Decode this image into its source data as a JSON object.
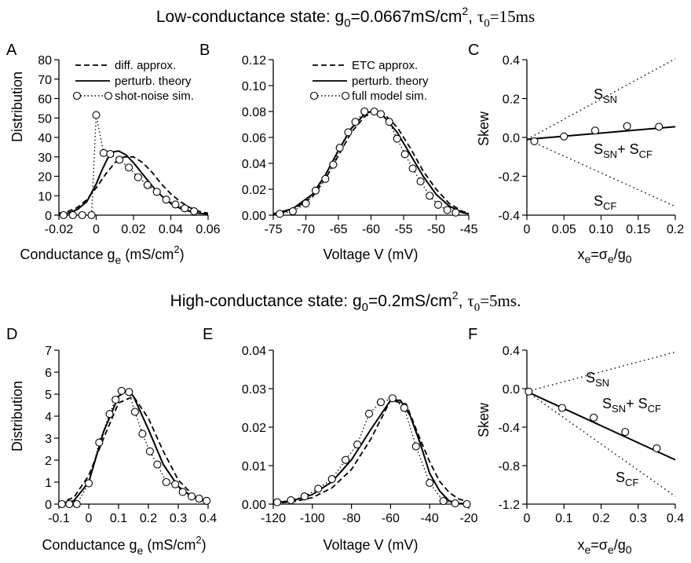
{
  "titles": {
    "low": {
      "prefix": "Low-conductance state: g",
      "sub0": "0",
      "mid": "=0.0667mS/cm",
      "sup": "2",
      "sep": ", ",
      "tau": "τ",
      "tausub": "0",
      "tail": "=15ms"
    },
    "high": {
      "prefix": "High-conductance state: g",
      "sub0": "0",
      "mid": "=0.2mS/cm",
      "sup": "2",
      "sep": ", ",
      "tau": "τ",
      "tausub": "0",
      "tail": "=5ms."
    }
  },
  "legends": {
    "left": [
      "diff. approx.",
      "perturb. theory",
      "shot-noise sim."
    ],
    "mid": [
      "ETC approx.",
      "perturb. theory",
      "full model sim."
    ]
  },
  "axis_text": {
    "distribution": "Distribution",
    "conductance": {
      "main": "Conductance g",
      "sub": "e",
      "units": " (mS/cm",
      "sup": "2",
      "close": ")"
    },
    "voltage": "Voltage V (mV)",
    "skew": "Skew",
    "xe": {
      "a": "x",
      "asub": "e",
      "b": "=σ",
      "bsub": "e",
      "c": "/g",
      "csub": "0"
    }
  },
  "annotations": {
    "ssn": {
      "main": "S",
      "sub": "SN"
    },
    "scf": {
      "main": "S",
      "sub": "CF"
    },
    "sum": {
      "s1": "S",
      "s1sub": "SN",
      "plus": "+ S",
      "s2sub": "CF"
    }
  },
  "chart_data": [
    {
      "panel": "A",
      "type": "line",
      "xlim": [
        -0.02,
        0.06
      ],
      "ylim": [
        0,
        80
      ],
      "xticks": [
        -0.02,
        0,
        0.02,
        0.04,
        0.06
      ],
      "xticklabels": [
        "-0.02",
        "0",
        "0.02",
        "0.04",
        "0.06"
      ],
      "yticks": [
        0,
        10,
        20,
        30,
        40,
        50,
        60,
        70,
        80
      ],
      "yticklabels": [
        "0",
        "10",
        "20",
        "30",
        "40",
        "50",
        "60",
        "70",
        "80"
      ],
      "series": [
        {
          "name": "diff. approx.",
          "style": "dashed",
          "x": [
            -0.02,
            -0.015,
            -0.01,
            -0.005,
            0.0,
            0.005,
            0.01,
            0.015,
            0.02,
            0.025,
            0.03,
            0.035,
            0.04,
            0.045,
            0.05,
            0.055,
            0.06
          ],
          "y": [
            1,
            2,
            4,
            8,
            14,
            21,
            27,
            30,
            30,
            27,
            22,
            16,
            11,
            7,
            4,
            2,
            1
          ]
        },
        {
          "name": "perturb. theory",
          "style": "solid",
          "x": [
            -0.02,
            -0.015,
            -0.01,
            -0.005,
            0.0,
            0.003,
            0.006,
            0.009,
            0.012,
            0.016,
            0.02,
            0.025,
            0.03,
            0.035,
            0.04,
            0.045,
            0.05,
            0.055,
            0.06
          ],
          "y": [
            0.5,
            1,
            3,
            7,
            16,
            23,
            29,
            32.5,
            33,
            31,
            27,
            21,
            15,
            10,
            6,
            3.5,
            2,
            1,
            0.5
          ]
        },
        {
          "name": "shot-noise sim.",
          "style": "dotted-markers",
          "x": [
            -0.0175,
            -0.0125,
            -0.0075,
            -0.0025,
            0.0,
            0.004,
            0.0075,
            0.0125,
            0.0175,
            0.0225,
            0.0275,
            0.0325,
            0.0375,
            0.0425,
            0.0475,
            0.0525
          ],
          "y": [
            0,
            0,
            0,
            0,
            51.5,
            32,
            31.5,
            28.5,
            24.5,
            19.5,
            15.5,
            12,
            8,
            5.5,
            3.5,
            2
          ]
        }
      ]
    },
    {
      "panel": "B",
      "type": "line",
      "xlim": [
        -75,
        -45
      ],
      "ylim": [
        0,
        0.12
      ],
      "xticks": [
        -75,
        -70,
        -65,
        -60,
        -55,
        -50,
        -45
      ],
      "xticklabels": [
        "-75",
        "-70",
        "-65",
        "-60",
        "-55",
        "-50",
        "-45"
      ],
      "yticks": [
        0,
        0.02,
        0.04,
        0.06,
        0.08,
        0.1,
        0.12
      ],
      "yticklabels": [
        "0.00",
        "0.02",
        "0.04",
        "0.06",
        "0.08",
        "0.10",
        "0.12"
      ],
      "series": [
        {
          "name": "ETC approx.",
          "style": "dashed",
          "x": [
            -75,
            -72,
            -69,
            -67,
            -65,
            -63,
            -61,
            -59.5,
            -58,
            -56,
            -54,
            -52,
            -50,
            -48,
            -46,
            -45
          ],
          "y": [
            0.0008,
            0.004,
            0.014,
            0.028,
            0.046,
            0.064,
            0.076,
            0.08,
            0.078,
            0.068,
            0.052,
            0.034,
            0.02,
            0.009,
            0.003,
            0.0015
          ]
        },
        {
          "name": "perturb. theory",
          "style": "solid",
          "x": [
            -75,
            -72,
            -69,
            -67,
            -65,
            -63,
            -61,
            -60,
            -58,
            -56,
            -54,
            -52,
            -50,
            -48,
            -46,
            -45
          ],
          "y": [
            0.001,
            0.005,
            0.016,
            0.031,
            0.05,
            0.067,
            0.078,
            0.08,
            0.076,
            0.064,
            0.047,
            0.03,
            0.016,
            0.007,
            0.002,
            0.001
          ]
        },
        {
          "name": "full model sim.",
          "style": "dotted-markers",
          "x": [
            -74,
            -72,
            -70,
            -68.5,
            -67,
            -65.8,
            -64.8,
            -63.5,
            -62.4,
            -61,
            -59.5,
            -58.5,
            -57.2,
            -56,
            -54.8,
            -53.6,
            -52.4,
            -51,
            -49.7,
            -48.3,
            -47
          ],
          "y": [
            0.001,
            0.003,
            0.009,
            0.019,
            0.028,
            0.039,
            0.052,
            0.064,
            0.072,
            0.08,
            0.08,
            0.078,
            0.072,
            0.059,
            0.047,
            0.036,
            0.026,
            0.015,
            0.008,
            0.004,
            0.002
          ]
        }
      ]
    },
    {
      "panel": "C",
      "type": "line",
      "xlim": [
        0,
        0.2
      ],
      "ylim": [
        -0.4,
        0.4
      ],
      "xticks": [
        0,
        0.05,
        0.1,
        0.15,
        0.2
      ],
      "xticklabels": [
        "0",
        "0.05",
        "0.10",
        "0.15",
        "0.2"
      ],
      "yticks": [
        -0.4,
        -0.2,
        0,
        0.2,
        0.4
      ],
      "yticklabels": [
        "-0.4",
        "-0.2",
        "0.0",
        "0.2",
        "0.4"
      ],
      "ylabel": "Skew",
      "series": [
        {
          "name": "S_SN",
          "style": "dotted",
          "x": [
            0.0,
            0.2
          ],
          "y": [
            -0.01,
            0.405
          ]
        },
        {
          "name": "S_CF",
          "style": "dotted",
          "x": [
            0.0,
            0.2
          ],
          "y": [
            -0.01,
            -0.355
          ]
        },
        {
          "name": "S_SN + S_CF",
          "style": "solid",
          "x": [
            0.0,
            0.2
          ],
          "y": [
            -0.01,
            0.055
          ]
        },
        {
          "name": "sim",
          "style": "markers",
          "x": [
            0.01,
            0.05,
            0.092,
            0.135,
            0.178
          ],
          "y": [
            -0.02,
            0.005,
            0.035,
            0.058,
            0.055
          ]
        }
      ]
    },
    {
      "panel": "D",
      "type": "line",
      "xlim": [
        -0.1,
        0.4
      ],
      "ylim": [
        0,
        7
      ],
      "xticks": [
        -0.1,
        0,
        0.1,
        0.2,
        0.3,
        0.4
      ],
      "xticklabels": [
        "-0.1",
        "0",
        "0.1",
        "0.2",
        "0.3",
        "0.4"
      ],
      "yticks": [
        0,
        1,
        2,
        3,
        4,
        5,
        6,
        7
      ],
      "yticklabels": [
        "0",
        "1",
        "2",
        "3",
        "4",
        "5",
        "6",
        "7"
      ],
      "series": [
        {
          "name": "diff. approx.",
          "style": "dashed",
          "x": [
            -0.1,
            -0.05,
            0.0,
            0.05,
            0.1,
            0.15,
            0.2,
            0.25,
            0.3,
            0.35,
            0.4
          ],
          "y": [
            0.05,
            0.3,
            1.3,
            3.0,
            4.6,
            4.9,
            3.9,
            2.4,
            1.1,
            0.4,
            0.1
          ]
        },
        {
          "name": "perturb. theory",
          "style": "solid",
          "x": [
            -0.1,
            -0.05,
            0.0,
            0.05,
            0.1,
            0.13,
            0.15,
            0.2,
            0.25,
            0.3,
            0.35,
            0.4
          ],
          "y": [
            0.02,
            0.15,
            1.0,
            3.3,
            4.9,
            5.2,
            4.9,
            3.4,
            1.8,
            0.8,
            0.3,
            0.1
          ]
        },
        {
          "name": "shot-noise sim.",
          "style": "dotted-markers",
          "x": [
            -0.09,
            -0.065,
            -0.04,
            0.0,
            0.035,
            0.07,
            0.09,
            0.11,
            0.135,
            0.155,
            0.18,
            0.205,
            0.23,
            0.26,
            0.29,
            0.315,
            0.345,
            0.37,
            0.395
          ],
          "y": [
            0,
            0,
            0,
            0.95,
            2.8,
            4.1,
            4.75,
            5.15,
            5.1,
            4.2,
            3.2,
            2.4,
            1.8,
            1.0,
            0.9,
            0.55,
            0.35,
            0.25,
            0.15
          ]
        }
      ]
    },
    {
      "panel": "E",
      "type": "line",
      "xlim": [
        -120,
        -20
      ],
      "ylim": [
        0,
        0.04
      ],
      "xticks": [
        -120,
        -100,
        -80,
        -60,
        -40,
        -20
      ],
      "xticklabels": [
        "-120",
        "-100",
        "-80",
        "-60",
        "-40",
        "-20"
      ],
      "yticks": [
        0,
        0.01,
        0.02,
        0.03,
        0.04
      ],
      "yticklabels": [
        "0.00",
        "0.01",
        "0.02",
        "0.03",
        "0.04"
      ],
      "series": [
        {
          "name": "ETC approx.",
          "style": "dashed",
          "x": [
            -120,
            -110,
            -100,
            -90,
            -80,
            -70,
            -60,
            -52,
            -45,
            -40,
            -35,
            -30,
            -25,
            -20
          ],
          "y": [
            0.0002,
            0.0006,
            0.0017,
            0.0042,
            0.009,
            0.017,
            0.027,
            0.026,
            0.017,
            0.011,
            0.006,
            0.003,
            0.0013,
            0.0005
          ]
        },
        {
          "name": "perturb. theory",
          "style": "solid",
          "x": [
            -120,
            -110,
            -100,
            -90,
            -80,
            -70,
            -60,
            -55,
            -50,
            -45,
            -40,
            -35,
            -30,
            -25,
            -20
          ],
          "y": [
            0.0003,
            0.0009,
            0.0025,
            0.0058,
            0.0115,
            0.0195,
            0.027,
            0.027,
            0.023,
            0.016,
            0.008,
            0.0035,
            0.0008,
            0.0002,
            0.0
          ]
        },
        {
          "name": "full model sim.",
          "style": "dotted-markers",
          "x": [
            -118,
            -111,
            -104,
            -97,
            -90,
            -83,
            -77,
            -71,
            -65,
            -59,
            -53,
            -47,
            -40,
            -33,
            -27,
            -21
          ],
          "y": [
            0.0005,
            0.001,
            0.002,
            0.004,
            0.0065,
            0.0115,
            0.0155,
            0.0235,
            0.0265,
            0.0275,
            0.025,
            0.015,
            0.0055,
            0.0008,
            0.0002,
            0.0
          ]
        }
      ]
    },
    {
      "panel": "F",
      "type": "line",
      "xlim": [
        0,
        0.4
      ],
      "ylim": [
        -1.2,
        0.4
      ],
      "xticks": [
        0,
        0.1,
        0.2,
        0.3,
        0.4
      ],
      "xticklabels": [
        "0",
        "0.1",
        "0.2",
        "0.3",
        "0.4"
      ],
      "yticks": [
        -1.2,
        -0.8,
        -0.4,
        0,
        0.4
      ],
      "yticklabels": [
        "-1.2",
        "-0.8",
        "-0.4",
        "0.0",
        "0.4"
      ],
      "ylabel": "Skew",
      "series": [
        {
          "name": "S_SN",
          "style": "dotted",
          "x": [
            0.0,
            0.4
          ],
          "y": [
            -0.03,
            0.38
          ]
        },
        {
          "name": "S_CF",
          "style": "dotted",
          "x": [
            0.0,
            0.4
          ],
          "y": [
            -0.03,
            -1.12
          ]
        },
        {
          "name": "S_SN + S_CF",
          "style": "solid",
          "x": [
            0.0,
            0.4
          ],
          "y": [
            -0.03,
            -0.74
          ]
        },
        {
          "name": "sim",
          "style": "markers",
          "x": [
            0.005,
            0.095,
            0.18,
            0.265,
            0.35
          ],
          "y": [
            -0.03,
            -0.2,
            -0.3,
            -0.45,
            -0.62
          ]
        }
      ]
    }
  ]
}
